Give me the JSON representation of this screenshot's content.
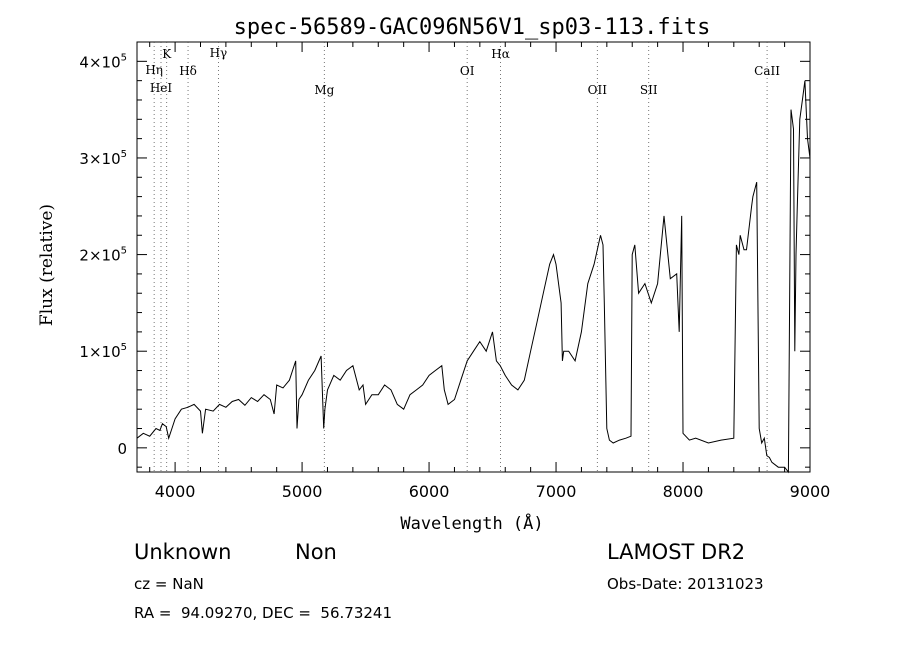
{
  "chart_data": {
    "type": "line",
    "title": "spec-56589-GAC096N56V1_sp03-113.fits",
    "xlabel": "Wavelength (Å)",
    "ylabel": "Flux (relative)",
    "xlim": [
      3700,
      9000
    ],
    "ylim": [
      -25000,
      420000
    ],
    "x_ticks": [
      4000,
      5000,
      6000,
      7000,
      8000,
      9000
    ],
    "x_tick_labels": [
      "4000",
      "5000",
      "6000",
      "7000",
      "8000",
      "9000"
    ],
    "y_ticks": [
      0,
      100000,
      200000,
      300000,
      400000
    ],
    "y_tick_labels": [
      {
        "mantissa": "0",
        "exponent": ""
      },
      {
        "mantissa": "1×10",
        "exponent": "5"
      },
      {
        "mantissa": "2×10",
        "exponent": "5"
      },
      {
        "mantissa": "3×10",
        "exponent": "5"
      },
      {
        "mantissa": "4×10",
        "exponent": "5"
      }
    ],
    "grid": false,
    "lines": [
      {
        "label": "Hη",
        "x": 3835
      },
      {
        "label": "HeI",
        "x": 3889
      },
      {
        "label": "K",
        "x": 3934
      },
      {
        "label": "Hδ",
        "x": 4102
      },
      {
        "label": "Hγ",
        "x": 4341
      },
      {
        "label": "Mg",
        "x": 5175
      },
      {
        "label": "OI",
        "x": 6300
      },
      {
        "label": "Hα",
        "x": 6563
      },
      {
        "label": "OII",
        "x": 7325
      },
      {
        "label": "SII",
        "x": 7730
      },
      {
        "label": "CaII",
        "x": 8662
      }
    ],
    "series": [
      {
        "x": [
          3700,
          3750,
          3800,
          3850,
          3880,
          3900,
          3930,
          3950,
          3970,
          4000,
          4050,
          4100,
          4150,
          4200,
          4215,
          4240,
          4300,
          4350,
          4400,
          4450,
          4500,
          4550,
          4600,
          4650,
          4700,
          4750,
          4780,
          4800,
          4850,
          4900,
          4950,
          4960,
          4975,
          5000,
          5050,
          5100,
          5150,
          5170,
          5180,
          5200,
          5250,
          5300,
          5350,
          5400,
          5450,
          5480,
          5500,
          5550,
          5600,
          5650,
          5700,
          5750,
          5800,
          5850,
          5900,
          5950,
          6000,
          6050,
          6100,
          6120,
          6130,
          6150,
          6200,
          6250,
          6300,
          6350,
          6400,
          6450,
          6500,
          6530,
          6560,
          6600,
          6650,
          6700,
          6750,
          6800,
          6850,
          6900,
          6950,
          6980,
          7000,
          7040,
          7050,
          7060,
          7100,
          7150,
          7200,
          7250,
          7300,
          7350,
          7370,
          7380,
          7400,
          7420,
          7450,
          7500,
          7550,
          7590,
          7600,
          7620,
          7650,
          7700,
          7750,
          7800,
          7850,
          7900,
          7950,
          7970,
          7990,
          8000,
          8050,
          8100,
          8200,
          8300,
          8400,
          8420,
          8440,
          8450,
          8480,
          8500,
          8540,
          8550,
          8580,
          8600,
          8620,
          8640,
          8660,
          8680,
          8700,
          8750,
          8800,
          8830,
          8850,
          8870,
          8880,
          8890,
          8900,
          8920,
          8940,
          8960,
          8980,
          9000
        ],
        "y": [
          10000,
          15000,
          12000,
          20000,
          18000,
          25000,
          22000,
          10000,
          18000,
          30000,
          40000,
          42000,
          45000,
          38000,
          15000,
          40000,
          38000,
          45000,
          42000,
          48000,
          50000,
          44000,
          52000,
          48000,
          55000,
          50000,
          35000,
          65000,
          62000,
          70000,
          90000,
          20000,
          50000,
          55000,
          70000,
          80000,
          95000,
          20000,
          40000,
          60000,
          75000,
          70000,
          80000,
          85000,
          60000,
          65000,
          45000,
          55000,
          55000,
          65000,
          60000,
          45000,
          40000,
          55000,
          60000,
          65000,
          75000,
          80000,
          85000,
          60000,
          55000,
          45000,
          50000,
          70000,
          90000,
          100000,
          110000,
          100000,
          120000,
          90000,
          85000,
          75000,
          65000,
          60000,
          70000,
          100000,
          130000,
          160000,
          190000,
          200000,
          190000,
          150000,
          90000,
          100000,
          100000,
          90000,
          120000,
          170000,
          190000,
          220000,
          210000,
          150000,
          20000,
          8000,
          5000,
          8000,
          10000,
          12000,
          200000,
          210000,
          160000,
          170000,
          150000,
          170000,
          240000,
          175000,
          180000,
          120000,
          240000,
          15000,
          8000,
          10000,
          5000,
          8000,
          10000,
          210000,
          200000,
          220000,
          205000,
          205000,
          250000,
          260000,
          275000,
          20000,
          5000,
          10000,
          -8000,
          -10000,
          -15000,
          -20000,
          -20000,
          -25000,
          350000,
          330000,
          100000,
          200000,
          250000,
          340000,
          360000,
          380000,
          320000,
          300000
        ]
      }
    ]
  },
  "info": {
    "object_class": "Unknown",
    "object_subclass": "Non",
    "survey": "LAMOST DR2",
    "redshift": "cz = NaN",
    "obs_date": "Obs-Date: 20131023",
    "coords": "RA =  94.09270, DEC =  56.73241"
  }
}
